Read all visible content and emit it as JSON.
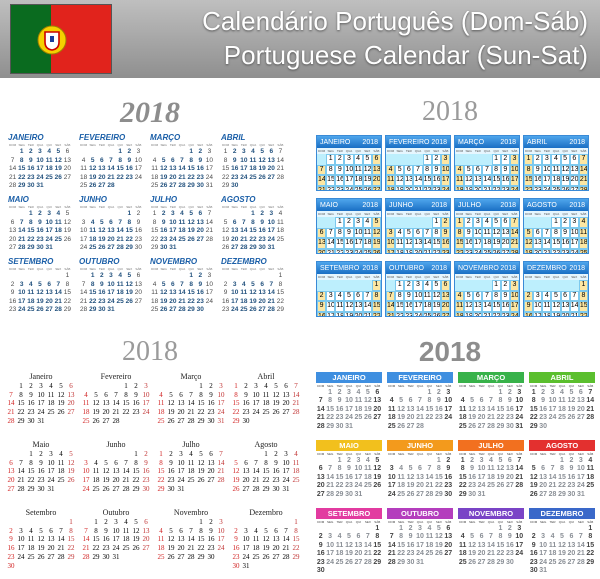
{
  "header": {
    "title_line1": "Calendário Português (Dom-Sáb)",
    "title_line2": "Portuguese Calendar (Sun-Sat)"
  },
  "year": "2018",
  "weekday_headers": [
    "DOM",
    "SEG",
    "TER",
    "QUA",
    "QUI",
    "SEX",
    "SÁB"
  ],
  "months_upper": [
    "JANEIRO",
    "FEVEREIRO",
    "MARÇO",
    "ABRIL",
    "MAIO",
    "JUNHO",
    "JULHO",
    "AGOSTO",
    "SETEMBRO",
    "OUTUBRO",
    "NOVEMBRO",
    "DEZEMBRO"
  ],
  "months_title": [
    "Janeiro",
    "Fevereiro",
    "Março",
    "Abril",
    "Maio",
    "Junho",
    "Julho",
    "Agosto",
    "Setembro",
    "Outubro",
    "Novembro",
    "Dezembro"
  ],
  "month_days": [
    31,
    28,
    31,
    30,
    31,
    30,
    31,
    31,
    30,
    31,
    30,
    31
  ],
  "month_start_weekday": [
    1,
    4,
    4,
    0,
    2,
    5,
    0,
    3,
    6,
    1,
    4,
    6
  ],
  "colors": {
    "flag_green": "#0a6b1f",
    "flag_red": "#e1231c",
    "blue_header": "#1a6fc4",
    "q4_month_colors": [
      "#3f8fe0",
      "#3f8fe0",
      "#38b24a",
      "#5bbf2e",
      "#f2c01d",
      "#f39a1c",
      "#f2701f",
      "#e3302f",
      "#e23ba0",
      "#b43ebd",
      "#7a44c6",
      "#3a68c9"
    ]
  }
}
